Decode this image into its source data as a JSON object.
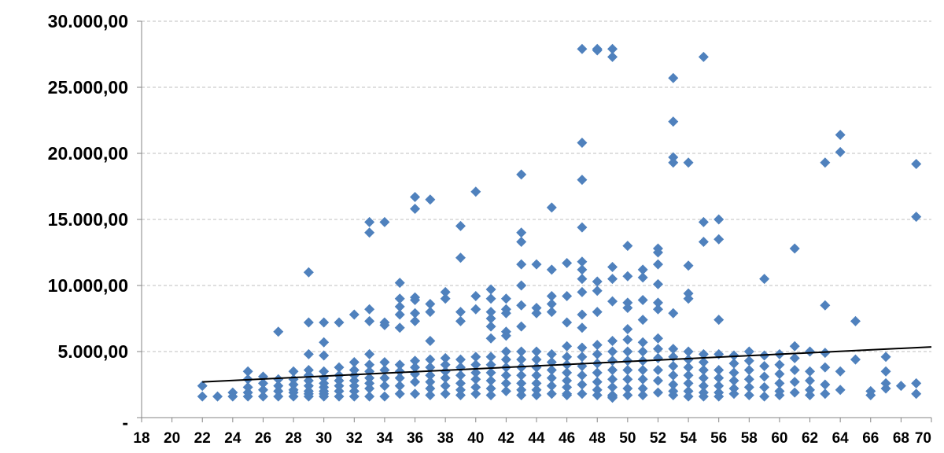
{
  "chart_data": {
    "type": "scatter",
    "title": "",
    "xlabel": "",
    "ylabel": "",
    "xlim": [
      18,
      70
    ],
    "ylim": [
      0,
      30000
    ],
    "x_ticks": [
      "18",
      "20",
      "22",
      "24",
      "26",
      "28",
      "30",
      "32",
      "34",
      "36",
      "38",
      "40",
      "42",
      "44",
      "46",
      "48",
      "50",
      "52",
      "54",
      "56",
      "58",
      "60",
      "62",
      "64",
      "66",
      "68",
      "70"
    ],
    "y_ticks": [
      "-",
      "5.000,00",
      "10.000,00",
      "15.000,00",
      "20.000,00",
      "25.000,00",
      "30.000,00"
    ],
    "grid": "horizontal dashed",
    "legend": "none",
    "colors": {
      "marker": "#4F81BD",
      "trendline": "#000000",
      "grid": "#BFBFBF",
      "axis": "#868686"
    },
    "trendline": {
      "x": [
        22,
        70
      ],
      "y": [
        2700,
        5350
      ]
    },
    "series": [
      {
        "x": [
          22,
          22,
          23,
          24,
          24,
          25,
          25,
          25,
          25,
          25,
          26,
          26,
          26,
          26,
          27,
          27,
          27,
          27,
          27,
          28,
          28,
          28,
          28,
          28,
          28,
          29,
          29,
          29,
          29,
          29,
          29,
          29,
          29,
          29,
          29,
          30,
          30,
          30,
          30,
          30,
          30,
          30,
          30,
          30,
          30,
          31,
          31,
          31,
          31,
          31,
          31,
          31,
          32,
          32,
          32,
          32,
          32,
          32,
          32,
          32,
          33,
          33,
          33,
          33,
          33,
          33,
          33,
          33,
          33,
          33,
          33,
          34,
          34,
          34,
          34,
          34,
          34,
          34,
          34,
          35,
          35,
          35,
          35,
          35,
          35,
          35,
          35,
          35,
          35,
          36,
          36,
          36,
          36,
          36,
          36,
          36,
          36,
          36,
          36,
          36,
          37,
          37,
          37,
          37,
          37,
          37,
          37,
          37,
          37,
          37,
          38,
          38,
          38,
          38,
          38,
          38,
          38,
          38,
          39,
          39,
          39,
          39,
          39,
          39,
          39,
          39,
          39,
          39,
          40,
          40,
          40,
          40,
          40,
          40,
          40,
          40,
          40,
          41,
          41,
          41,
          41,
          41,
          41,
          41,
          41,
          41,
          41,
          41,
          41,
          42,
          42,
          42,
          42,
          42,
          42,
          42,
          42,
          42,
          42,
          42,
          43,
          43,
          43,
          43,
          43,
          43,
          43,
          43,
          43,
          43,
          43,
          43,
          43,
          43,
          44,
          44,
          44,
          44,
          44,
          44,
          44,
          44,
          44,
          44,
          45,
          45,
          45,
          45,
          45,
          45,
          45,
          45,
          45,
          45,
          45,
          46,
          46,
          46,
          46,
          46,
          46,
          46,
          46,
          46,
          46,
          46,
          47,
          47,
          47,
          47,
          47,
          47,
          47,
          47,
          47,
          47,
          47,
          47,
          47,
          47,
          47,
          47,
          48,
          48,
          48,
          48,
          48,
          48,
          48,
          48,
          48,
          48,
          48,
          48,
          49,
          49,
          49,
          49,
          49,
          49,
          49,
          49,
          49,
          49,
          49,
          49,
          49,
          49,
          50,
          50,
          50,
          50,
          50,
          50,
          50,
          50,
          50,
          50,
          50,
          50,
          51,
          51,
          51,
          51,
          51,
          51,
          51,
          51,
          51,
          51,
          51,
          52,
          52,
          52,
          52,
          52,
          52,
          52,
          52,
          52,
          52,
          52,
          52,
          53,
          53,
          53,
          53,
          53,
          53,
          53,
          53,
          53,
          53,
          53,
          53,
          54,
          54,
          54,
          54,
          54,
          54,
          54,
          54,
          54,
          54,
          54,
          55,
          55,
          55,
          55,
          55,
          55,
          55,
          55,
          55,
          55,
          56,
          56,
          56,
          56,
          56,
          56,
          56,
          56,
          56,
          57,
          57,
          57,
          57,
          57,
          57,
          58,
          58,
          58,
          58,
          58,
          58,
          59,
          59,
          59,
          59,
          59,
          59,
          60,
          60,
          60,
          60,
          60,
          60,
          61,
          61,
          61,
          61,
          61,
          61,
          62,
          62,
          62,
          62,
          62,
          63,
          63,
          63,
          63,
          63,
          63,
          64,
          64,
          64,
          64,
          65,
          65,
          66,
          66,
          67,
          67,
          67,
          67,
          68,
          69,
          69,
          69,
          69
        ],
        "y": [
          2400,
          1600,
          1600,
          1900,
          1600,
          3500,
          2900,
          2300,
          1900,
          1600,
          3100,
          2600,
          2100,
          1600,
          6500,
          2900,
          2400,
          2000,
          1600,
          3500,
          2900,
          2500,
          2100,
          1900,
          1600,
          11000,
          7200,
          4800,
          3600,
          3200,
          2800,
          2400,
          2000,
          1800,
          1600,
          7200,
          5700,
          4700,
          3500,
          3000,
          2600,
          2300,
          2000,
          1800,
          1600,
          7200,
          3800,
          3200,
          2800,
          2400,
          2000,
          1600,
          7800,
          4200,
          3600,
          3200,
          2800,
          2400,
          2000,
          1600,
          14800,
          14000,
          8200,
          7300,
          4800,
          4000,
          3500,
          3000,
          2600,
          2200,
          1600,
          14800,
          7200,
          7000,
          4200,
          3600,
          3000,
          2400,
          1600,
          10200,
          9000,
          8400,
          7800,
          6800,
          4000,
          3500,
          3000,
          2400,
          1800,
          16700,
          15800,
          9100,
          8900,
          7900,
          7300,
          4300,
          3800,
          3300,
          2700,
          1800,
          16500,
          8600,
          8000,
          5800,
          4400,
          3800,
          3200,
          2700,
          2200,
          1700,
          9500,
          9000,
          4500,
          4000,
          3500,
          3000,
          2400,
          1800,
          14500,
          12100,
          8000,
          7300,
          4400,
          3800,
          3200,
          2600,
          2100,
          1700,
          17100,
          9200,
          8200,
          4600,
          4000,
          3400,
          2900,
          2300,
          1800,
          9700,
          9000,
          8000,
          7500,
          6900,
          6000,
          4600,
          4000,
          3400,
          2800,
          2200,
          1700,
          9000,
          8200,
          7900,
          6500,
          6200,
          5000,
          4400,
          3800,
          3200,
          2600,
          2000,
          18400,
          14000,
          13300,
          11600,
          10000,
          8500,
          6900,
          5000,
          4400,
          3800,
          3200,
          2600,
          2100,
          1700,
          11600,
          8300,
          7900,
          5000,
          4400,
          3800,
          3200,
          2600,
          2100,
          1700,
          15900,
          11200,
          9200,
          8600,
          8000,
          4800,
          4200,
          3600,
          3000,
          2400,
          1800,
          11700,
          9200,
          7200,
          5400,
          4600,
          4000,
          3400,
          2800,
          2300,
          1800,
          1700,
          27900,
          20800,
          18000,
          14400,
          11800,
          11200,
          10500,
          9500,
          7800,
          6800,
          5300,
          4600,
          3900,
          3200,
          2500,
          1800,
          27900,
          27800,
          10300,
          9600,
          8000,
          5500,
          4800,
          4100,
          3400,
          2700,
          2100,
          1700,
          27900,
          27300,
          11400,
          10500,
          8800,
          5800,
          5000,
          4300,
          3600,
          2900,
          2300,
          1700,
          1600,
          1500,
          13000,
          10700,
          8700,
          8300,
          6700,
          5900,
          5000,
          4300,
          3600,
          2900,
          2200,
          1700,
          11200,
          10600,
          8900,
          7400,
          5700,
          5000,
          4300,
          3600,
          2900,
          2200,
          1700,
          12800,
          12500,
          11600,
          10100,
          8700,
          8200,
          6000,
          5200,
          4500,
          3600,
          2800,
          1900,
          25700,
          22400,
          19700,
          19300,
          7900,
          5200,
          4600,
          3900,
          3200,
          2500,
          2000,
          1700,
          19300,
          11500,
          9400,
          9000,
          5000,
          4400,
          3800,
          3200,
          2600,
          2000,
          1600,
          27300,
          14800,
          13300,
          4800,
          4200,
          3600,
          3000,
          2400,
          1900,
          1600,
          15000,
          13500,
          7400,
          4800,
          3600,
          3000,
          2400,
          1900,
          1600,
          4700,
          4100,
          3400,
          2800,
          2200,
          1800,
          5000,
          4300,
          3600,
          2900,
          2300,
          1700,
          10500,
          4700,
          3900,
          3100,
          2300,
          1600,
          4800,
          4000,
          3300,
          2600,
          2000,
          1700,
          12800,
          5400,
          4500,
          3600,
          2700,
          1900,
          5000,
          3500,
          2800,
          2100,
          1700,
          19300,
          8500,
          4900,
          3800,
          2500,
          1800,
          21400,
          20100,
          3500,
          2100,
          7300,
          4400,
          2000,
          1700,
          4600,
          3500,
          2600,
          2200,
          2400,
          19200,
          15200,
          2600,
          1800
        ]
      }
    ]
  }
}
